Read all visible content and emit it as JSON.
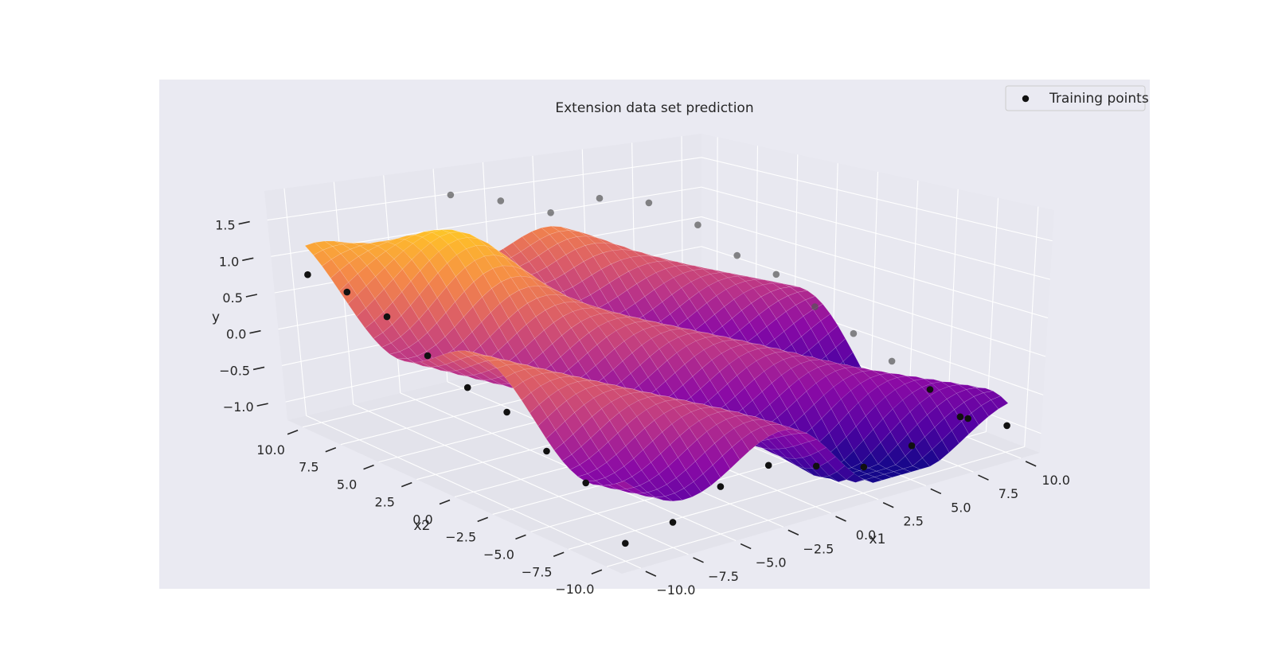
{
  "chart_data": {
    "type": "surface3d",
    "title": "Extension data set prediction",
    "xlabel": "x1",
    "ylabel": "x2",
    "zlabel": "y",
    "xlim": [
      -11,
      11
    ],
    "ylim": [
      -11,
      11
    ],
    "zlim": [
      -1.25,
      1.9
    ],
    "x_ticks": [
      "−10.0",
      "−7.5",
      "−5.0",
      "−2.5",
      "0.0",
      "2.5",
      "5.0",
      "7.5",
      "10.0"
    ],
    "y_ticks": [
      "−10.0",
      "−7.5",
      "−5.0",
      "−2.5",
      "0.0",
      "2.5",
      "5.0",
      "7.5",
      "10.0"
    ],
    "z_ticks": [
      "−1.0",
      "−0.5",
      "0.0",
      "0.5",
      "1.0",
      "1.5"
    ],
    "x_tick_values": [
      -10,
      -7.5,
      -5,
      -2.5,
      0,
      2.5,
      5,
      7.5,
      10
    ],
    "y_tick_values": [
      -10,
      -7.5,
      -5,
      -2.5,
      0,
      2.5,
      5,
      7.5,
      10
    ],
    "z_tick_values": [
      -1,
      -0.5,
      0,
      0.5,
      1,
      1.5
    ],
    "colormap": "plasma",
    "grid": true,
    "legend_position": "top-right",
    "legend": [
      {
        "name": "Training points",
        "marker": "filled-circle",
        "color": "#111111"
      }
    ],
    "training_points": [
      {
        "x1": -10,
        "x2": -10,
        "y": -1.0
      },
      {
        "x1": -10,
        "x2": -7.5,
        "y": -0.4
      },
      {
        "x1": -10,
        "x2": -5,
        "y": -0.2
      },
      {
        "x1": -10,
        "x2": -2.5,
        "y": 0.1
      },
      {
        "x1": -10,
        "x2": 0,
        "y": 0.2
      },
      {
        "x1": -10,
        "x2": 2.5,
        "y": 0.4
      },
      {
        "x1": -10,
        "x2": 5,
        "y": 0.7
      },
      {
        "x1": -10,
        "x2": 7.5,
        "y": 0.8
      },
      {
        "x1": -10,
        "x2": 10,
        "y": 0.8
      },
      {
        "x1": -7.5,
        "x2": -10,
        "y": -0.9
      },
      {
        "x1": -5,
        "x2": -10,
        "y": -0.6
      },
      {
        "x1": -2.5,
        "x2": -10,
        "y": -0.5
      },
      {
        "x1": -2.5,
        "x2": 10,
        "y": 1.6
      },
      {
        "x1": 0,
        "x2": 10,
        "y": 1.4
      },
      {
        "x1": 2.5,
        "x2": 10,
        "y": 1.1
      },
      {
        "x1": 5,
        "x2": 10,
        "y": 1.2
      },
      {
        "x1": 7.5,
        "x2": 10,
        "y": 1.0
      },
      {
        "x1": 10,
        "x2": 10,
        "y": 0.5
      },
      {
        "x1": 10,
        "x2": 7.5,
        "y": 0.2
      },
      {
        "x1": 10,
        "x2": 5,
        "y": 0.1
      },
      {
        "x1": 10,
        "x2": 2.5,
        "y": -0.2
      },
      {
        "x1": 10,
        "x2": 0,
        "y": -0.4
      },
      {
        "x1": 10,
        "x2": -2.5,
        "y": -0.6
      },
      {
        "x1": 10,
        "x2": -5,
        "y": -0.8
      },
      {
        "x1": 10,
        "x2": -7.5,
        "y": -1.0
      },
      {
        "x1": 10,
        "x2": -10,
        "y": -0.9
      },
      {
        "x1": 5,
        "x2": -10,
        "y": -0.8
      },
      {
        "x1": 7.5,
        "x2": -10,
        "y": -0.6
      },
      {
        "x1": 2.5,
        "x2": -10,
        "y": -0.9
      },
      {
        "x1": 0,
        "x2": -10,
        "y": -0.7
      }
    ]
  }
}
